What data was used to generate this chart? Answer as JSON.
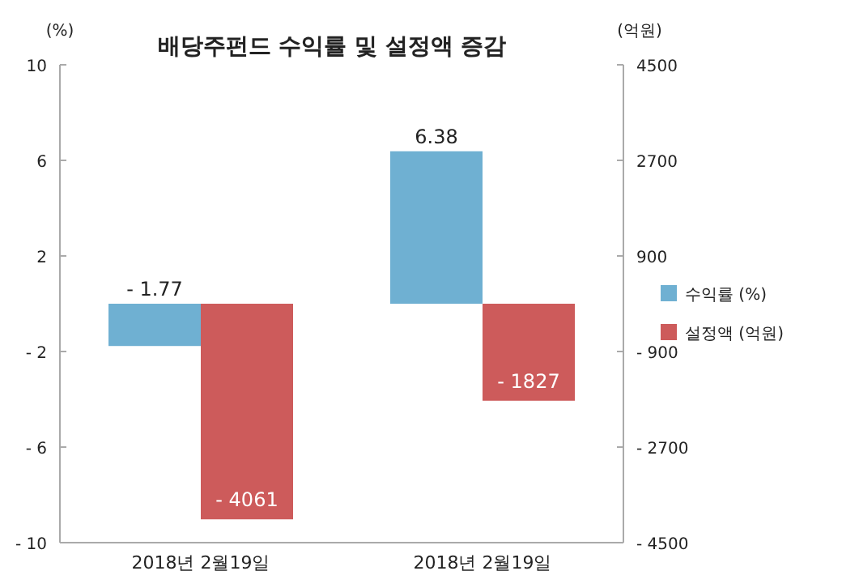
{
  "chart_data": {
    "type": "bar",
    "title": "배당주펀드 수익률 및 설정액 증감",
    "ylabel": "(%)",
    "y2label": "(억원)",
    "categories": [
      "2018년 2월19일",
      "2018년 2월19일"
    ],
    "series": [
      {
        "name": "수익률 (%)",
        "color": "#6fb0d2",
        "values": [
          -1.77,
          6.38
        ],
        "value_labels": [
          "- 1.77",
          "6.38"
        ]
      },
      {
        "name": "설정액 (억원)",
        "color": "#cd5b5b",
        "values": [
          -4061,
          -1827
        ],
        "value_labels": [
          "- 4061",
          "- 1827"
        ],
        "axis": "y2"
      }
    ],
    "ylim": [
      -10,
      10
    ],
    "yticks": [
      {
        "value": -10,
        "label": "- 10"
      },
      {
        "value": -6,
        "label": "- 6"
      },
      {
        "value": -2,
        "label": "- 2"
      },
      2,
      6,
      10
    ],
    "y2lim": [
      -4500,
      4500
    ],
    "y2ticks": [
      {
        "value": -4500,
        "label": "- 4500"
      },
      {
        "value": -2700,
        "label": "- 2700"
      },
      {
        "value": -900,
        "label": "- 900"
      },
      900,
      2700,
      4500
    ],
    "grid": false,
    "legend": "right"
  }
}
